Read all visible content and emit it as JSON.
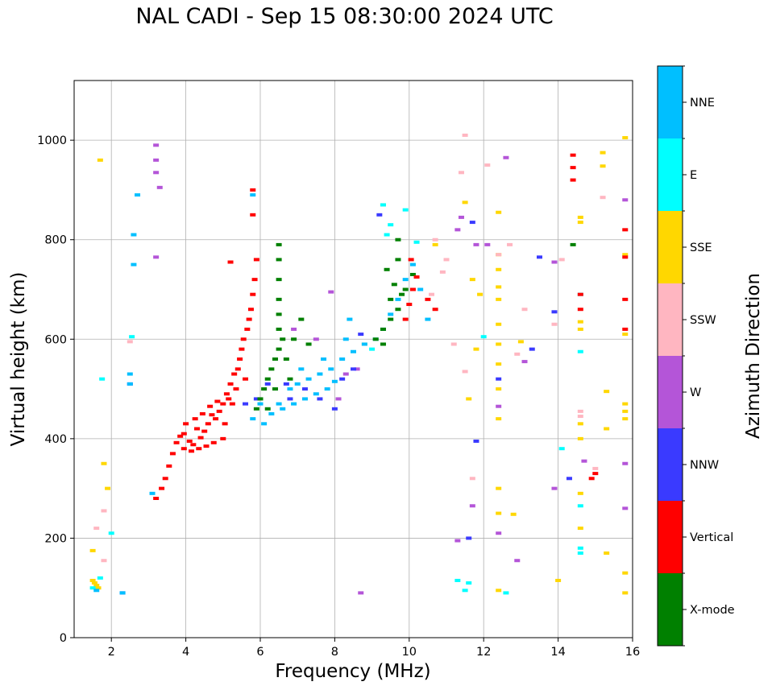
{
  "chart_data": {
    "type": "scatter",
    "title": "NAL CADI - Sep 15 08:30:00 2024 UTC",
    "xlabel": "Frequency (MHz)",
    "ylabel": "Virtual height (km)",
    "xlim": [
      1,
      16
    ],
    "ylim": [
      0,
      1120
    ],
    "xticks": [
      2,
      4,
      6,
      8,
      10,
      12,
      14,
      16
    ],
    "yticks": [
      0,
      200,
      400,
      600,
      800,
      1000
    ],
    "grid": true,
    "colorbar": {
      "label": "Azimuth Direction",
      "categories": [
        "X-mode",
        "Vertical",
        "NNW",
        "W",
        "SSW",
        "SSE",
        "E",
        "NNE"
      ],
      "colors": [
        "#008000",
        "#ff0000",
        "#3a3aff",
        "#b455d8",
        "#ffb6c1",
        "#ffd700",
        "#00ffff",
        "#00bfff"
      ]
    },
    "series": [
      {
        "name": "Vertical",
        "points": [
          [
            3.2,
            280
          ],
          [
            3.35,
            300
          ],
          [
            3.45,
            320
          ],
          [
            3.55,
            345
          ],
          [
            3.65,
            370
          ],
          [
            3.75,
            392
          ],
          [
            3.85,
            405
          ],
          [
            3.95,
            410
          ],
          [
            4.1,
            395
          ],
          [
            4.2,
            388
          ],
          [
            4.3,
            420
          ],
          [
            4.4,
            402
          ],
          [
            4.5,
            415
          ],
          [
            4.6,
            430
          ],
          [
            4.7,
            448
          ],
          [
            4.8,
            440
          ],
          [
            4.9,
            455
          ],
          [
            5.0,
            470
          ],
          [
            5.05,
            430
          ],
          [
            5.1,
            490
          ],
          [
            5.2,
            510
          ],
          [
            5.25,
            470
          ],
          [
            5.3,
            530
          ],
          [
            5.35,
            500
          ],
          [
            5.4,
            540
          ],
          [
            5.45,
            560
          ],
          [
            5.5,
            580
          ],
          [
            5.55,
            600
          ],
          [
            5.6,
            520
          ],
          [
            5.65,
            620
          ],
          [
            5.7,
            640
          ],
          [
            5.75,
            660
          ],
          [
            5.8,
            690
          ],
          [
            5.85,
            720
          ],
          [
            5.9,
            760
          ],
          [
            5.8,
            850
          ],
          [
            5.8,
            900
          ],
          [
            5.2,
            755
          ],
          [
            3.95,
            380
          ],
          [
            4.15,
            375
          ],
          [
            4.35,
            380
          ],
          [
            4.55,
            385
          ],
          [
            4.75,
            392
          ],
          [
            5.0,
            400
          ],
          [
            4.0,
            430
          ],
          [
            4.25,
            440
          ],
          [
            4.45,
            450
          ],
          [
            4.65,
            465
          ],
          [
            4.85,
            475
          ],
          [
            5.15,
            480
          ],
          [
            9.9,
            640
          ],
          [
            10.0,
            670
          ],
          [
            10.1,
            700
          ],
          [
            10.2,
            725
          ],
          [
            10.05,
            760
          ],
          [
            10.5,
            680
          ],
          [
            10.7,
            660
          ],
          [
            14.4,
            970
          ],
          [
            14.4,
            945
          ],
          [
            14.4,
            920
          ],
          [
            14.6,
            690
          ],
          [
            14.6,
            660
          ],
          [
            14.9,
            320
          ],
          [
            15.0,
            330
          ],
          [
            15.8,
            820
          ],
          [
            15.8,
            765
          ],
          [
            15.8,
            680
          ],
          [
            15.8,
            620
          ]
        ]
      },
      {
        "name": "X-mode",
        "points": [
          [
            5.9,
            460
          ],
          [
            6.0,
            480
          ],
          [
            6.1,
            500
          ],
          [
            6.2,
            520
          ],
          [
            6.3,
            540
          ],
          [
            6.4,
            560
          ],
          [
            6.5,
            580
          ],
          [
            6.6,
            600
          ],
          [
            6.5,
            620
          ],
          [
            6.5,
            650
          ],
          [
            6.5,
            680
          ],
          [
            6.5,
            720
          ],
          [
            6.5,
            760
          ],
          [
            6.5,
            790
          ],
          [
            6.7,
            560
          ],
          [
            6.9,
            600
          ],
          [
            7.1,
            640
          ],
          [
            7.3,
            590
          ],
          [
            6.2,
            460
          ],
          [
            6.4,
            500
          ],
          [
            6.8,
            520
          ],
          [
            9.1,
            600
          ],
          [
            9.3,
            620
          ],
          [
            9.5,
            640
          ],
          [
            9.7,
            660
          ],
          [
            9.8,
            690
          ],
          [
            9.6,
            710
          ],
          [
            9.4,
            740
          ],
          [
            9.7,
            760
          ],
          [
            9.9,
            700
          ],
          [
            10.1,
            730
          ],
          [
            9.5,
            680
          ],
          [
            9.3,
            590
          ],
          [
            9.7,
            800
          ],
          [
            14.4,
            790
          ]
        ]
      },
      {
        "name": "NNE",
        "points": [
          [
            5.8,
            440
          ],
          [
            6.1,
            430
          ],
          [
            6.3,
            450
          ],
          [
            6.6,
            460
          ],
          [
            6.9,
            470
          ],
          [
            7.2,
            480
          ],
          [
            7.5,
            490
          ],
          [
            7.8,
            500
          ],
          [
            8.0,
            515
          ],
          [
            6.8,
            500
          ],
          [
            7.0,
            510
          ],
          [
            7.3,
            520
          ],
          [
            7.6,
            530
          ],
          [
            7.9,
            540
          ],
          [
            8.2,
            560
          ],
          [
            8.5,
            575
          ],
          [
            8.8,
            590
          ],
          [
            9.1,
            600
          ],
          [
            9.3,
            620
          ],
          [
            9.5,
            650
          ],
          [
            9.7,
            680
          ],
          [
            9.9,
            720
          ],
          [
            10.1,
            750
          ],
          [
            10.3,
            700
          ],
          [
            6.5,
            470
          ],
          [
            7.1,
            540
          ],
          [
            7.7,
            560
          ],
          [
            8.3,
            600
          ],
          [
            6.0,
            470
          ],
          [
            2.5,
            510
          ],
          [
            2.5,
            530
          ],
          [
            2.6,
            750
          ],
          [
            2.6,
            810
          ],
          [
            2.7,
            890
          ],
          [
            3.1,
            290
          ],
          [
            5.8,
            890
          ],
          [
            1.6,
            95
          ],
          [
            2.3,
            90
          ],
          [
            8.4,
            640
          ],
          [
            10.5,
            640
          ]
        ]
      },
      {
        "name": "E",
        "points": [
          [
            1.5,
            100
          ],
          [
            1.7,
            120
          ],
          [
            2.0,
            210
          ],
          [
            2.55,
            605
          ],
          [
            1.75,
            520
          ],
          [
            9.5,
            830
          ],
          [
            9.9,
            860
          ],
          [
            9.3,
            870
          ],
          [
            12.0,
            605
          ],
          [
            11.3,
            115
          ],
          [
            11.6,
            110
          ],
          [
            11.5,
            95
          ],
          [
            14.6,
            690
          ],
          [
            14.6,
            575
          ],
          [
            14.6,
            265
          ],
          [
            14.6,
            180
          ],
          [
            14.6,
            170
          ],
          [
            12.6,
            90
          ],
          [
            14.1,
            380
          ],
          [
            9.0,
            580
          ],
          [
            9.4,
            810
          ],
          [
            10.2,
            795
          ]
        ]
      },
      {
        "name": "NNW",
        "points": [
          [
            5.6,
            470
          ],
          [
            5.9,
            480
          ],
          [
            6.7,
            510
          ],
          [
            7.2,
            500
          ],
          [
            7.6,
            480
          ],
          [
            8.0,
            460
          ],
          [
            8.5,
            540
          ],
          [
            8.7,
            610
          ],
          [
            8.2,
            520
          ],
          [
            9.2,
            850
          ],
          [
            11.7,
            835
          ],
          [
            11.6,
            200
          ],
          [
            11.8,
            395
          ],
          [
            12.4,
            520
          ],
          [
            13.3,
            580
          ],
          [
            13.5,
            765
          ],
          [
            13.9,
            655
          ],
          [
            14.3,
            320
          ],
          [
            2.3,
            90
          ],
          [
            2.5,
            510
          ],
          [
            6.2,
            510
          ],
          [
            6.8,
            480
          ]
        ]
      },
      {
        "name": "W",
        "points": [
          [
            3.2,
            990
          ],
          [
            3.2,
            960
          ],
          [
            3.2,
            935
          ],
          [
            3.2,
            765
          ],
          [
            3.3,
            905
          ],
          [
            7.9,
            695
          ],
          [
            8.3,
            530
          ],
          [
            8.6,
            540
          ],
          [
            8.1,
            480
          ],
          [
            11.4,
            845
          ],
          [
            11.3,
            820
          ],
          [
            11.8,
            790
          ],
          [
            12.1,
            790
          ],
          [
            12.4,
            465
          ],
          [
            12.4,
            210
          ],
          [
            12.6,
            965
          ],
          [
            12.9,
            155
          ],
          [
            13.1,
            555
          ],
          [
            13.9,
            755
          ],
          [
            13.9,
            300
          ],
          [
            14.7,
            355
          ],
          [
            15.8,
            880
          ],
          [
            15.8,
            350
          ],
          [
            15.8,
            260
          ],
          [
            8.7,
            90
          ],
          [
            11.3,
            195
          ],
          [
            11.7,
            265
          ],
          [
            7.5,
            600
          ],
          [
            6.9,
            620
          ]
        ]
      },
      {
        "name": "SSW",
        "points": [
          [
            1.6,
            220
          ],
          [
            1.8,
            155
          ],
          [
            1.8,
            255
          ],
          [
            2.5,
            595
          ],
          [
            10.6,
            690
          ],
          [
            10.9,
            735
          ],
          [
            11.0,
            760
          ],
          [
            11.2,
            590
          ],
          [
            11.5,
            535
          ],
          [
            11.7,
            320
          ],
          [
            12.4,
            770
          ],
          [
            12.9,
            570
          ],
          [
            13.1,
            660
          ],
          [
            13.9,
            630
          ],
          [
            14.1,
            760
          ],
          [
            14.6,
            455
          ],
          [
            14.6,
            445
          ],
          [
            15.2,
            885
          ],
          [
            15.0,
            340
          ],
          [
            11.5,
            1010
          ],
          [
            11.4,
            935
          ],
          [
            12.1,
            950
          ],
          [
            12.7,
            790
          ],
          [
            10.7,
            800
          ]
        ]
      },
      {
        "name": "SSE",
        "points": [
          [
            1.5,
            115
          ],
          [
            1.55,
            110
          ],
          [
            1.6,
            105
          ],
          [
            1.65,
            100
          ],
          [
            1.5,
            175
          ],
          [
            1.7,
            960
          ],
          [
            1.8,
            350
          ],
          [
            1.9,
            300
          ],
          [
            9.3,
            870
          ],
          [
            8.8,
            590
          ],
          [
            10.7,
            790
          ],
          [
            11.5,
            875
          ],
          [
            11.6,
            480
          ],
          [
            11.7,
            720
          ],
          [
            11.8,
            580
          ],
          [
            11.9,
            690
          ],
          [
            12.4,
            855
          ],
          [
            12.4,
            770
          ],
          [
            12.4,
            740
          ],
          [
            12.4,
            705
          ],
          [
            12.4,
            680
          ],
          [
            12.4,
            630
          ],
          [
            12.4,
            590
          ],
          [
            12.4,
            550
          ],
          [
            12.4,
            500
          ],
          [
            12.4,
            440
          ],
          [
            12.4,
            300
          ],
          [
            12.4,
            250
          ],
          [
            12.4,
            95
          ],
          [
            12.8,
            248
          ],
          [
            13.0,
            595
          ],
          [
            14.0,
            115
          ],
          [
            14.6,
            845
          ],
          [
            14.6,
            835
          ],
          [
            14.6,
            635
          ],
          [
            14.6,
            620
          ],
          [
            14.6,
            430
          ],
          [
            14.6,
            400
          ],
          [
            14.6,
            290
          ],
          [
            14.6,
            220
          ],
          [
            15.2,
            975
          ],
          [
            15.2,
            948
          ],
          [
            15.3,
            495
          ],
          [
            15.3,
            420
          ],
          [
            15.3,
            170
          ],
          [
            15.8,
            1005
          ],
          [
            15.8,
            770
          ],
          [
            15.8,
            610
          ],
          [
            15.8,
            470
          ],
          [
            15.8,
            455
          ],
          [
            15.8,
            440
          ],
          [
            15.8,
            130
          ],
          [
            15.8,
            90
          ]
        ]
      }
    ]
  }
}
